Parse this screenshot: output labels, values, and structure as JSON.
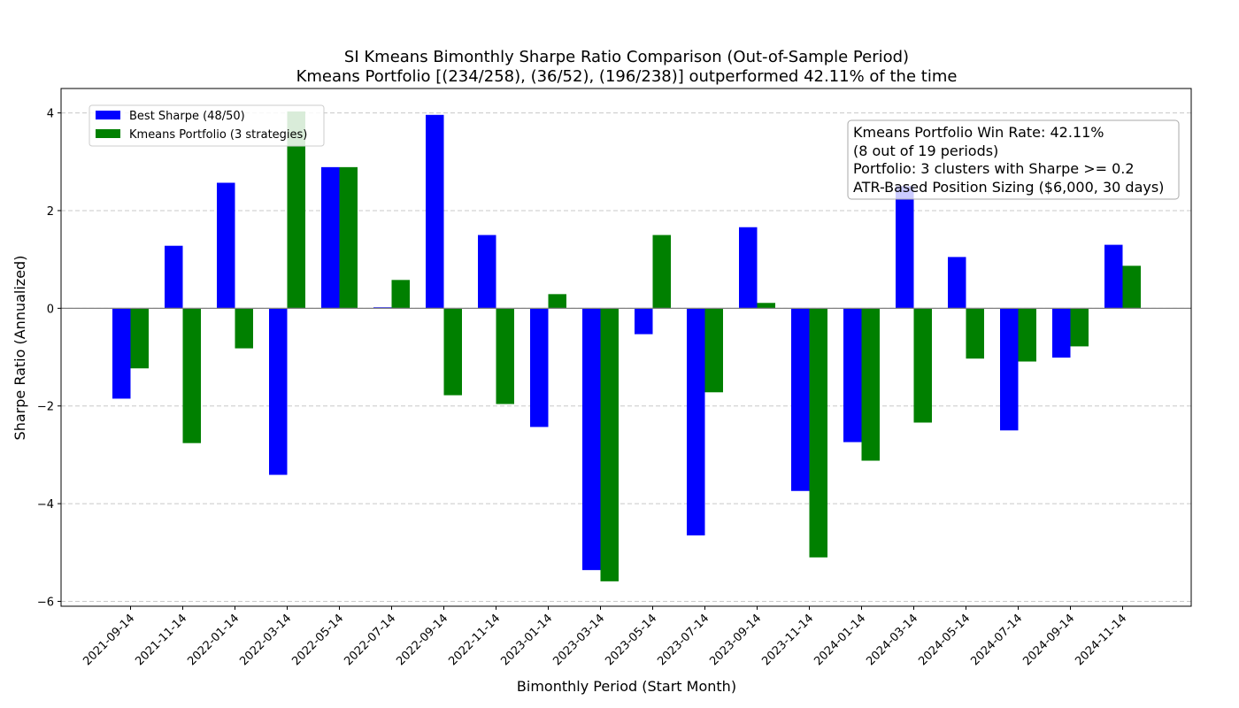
{
  "chart_data": {
    "type": "bar",
    "title": "SI Kmeans Bimonthly Sharpe Ratio Comparison (Out-of-Sample Period)",
    "subtitle": "Kmeans Portfolio [(234/258), (36/52), (196/238)] outperformed 42.11% of the time",
    "xlabel": "Bimonthly Period (Start Month)",
    "ylabel": "Sharpe Ratio (Annualized)",
    "ylim": [
      -6.1,
      4.5
    ],
    "yticks": [
      4,
      2,
      0,
      -2,
      -4,
      -6
    ],
    "ytick_labels": [
      "4",
      "2",
      "0",
      "−2",
      "−4",
      "−6"
    ],
    "grid": "horizontal dashed",
    "legend_position": "top-left",
    "categories": [
      "2021-09-14",
      "2021-11-14",
      "2022-01-14",
      "2022-03-14",
      "2022-05-14",
      "2022-07-14",
      "2022-09-14",
      "2022-11-14",
      "2023-01-14",
      "2023-03-14",
      "2023-05-14",
      "2023-07-14",
      "2023-09-14",
      "2023-11-14",
      "2024-01-14",
      "2024-03-14",
      "2024-05-14",
      "2024-07-14",
      "2024-09-14",
      "2024-11-14"
    ],
    "series": [
      {
        "name": "Best Sharpe (48/50)",
        "color": "#0000ff",
        "values": [
          -1.85,
          1.28,
          2.57,
          -3.41,
          2.89,
          0.02,
          3.96,
          1.5,
          -2.43,
          -5.36,
          -0.53,
          -4.65,
          1.66,
          -3.74,
          -2.74,
          2.5,
          1.05,
          -2.5,
          -1.01,
          1.3
        ]
      },
      {
        "name": "Kmeans Portfolio (3 strategies)",
        "color": "#008000",
        "values": [
          -1.23,
          -2.76,
          -0.82,
          4.03,
          2.89,
          0.58,
          -1.78,
          -1.96,
          0.29,
          -5.59,
          1.5,
          -1.72,
          0.11,
          -5.1,
          -3.12,
          -2.34,
          -1.03,
          -1.09,
          -0.78,
          0.87
        ]
      }
    ],
    "info_box": {
      "lines": [
        "Kmeans Portfolio Win Rate: 42.11%",
        "(8 out of 19 periods)",
        "Portfolio: 3 clusters with Sharpe >= 0.2",
        "ATR-Based Position Sizing ($6,000, 30 days)"
      ]
    }
  }
}
